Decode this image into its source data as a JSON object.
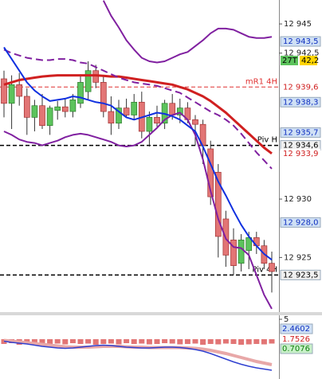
{
  "chart_data": {
    "type": "candlestick",
    "categories": [
      null,
      null,
      null,
      null,
      null,
      null,
      null,
      null,
      null,
      null,
      null,
      null,
      null,
      null,
      null,
      null,
      null,
      null,
      null,
      null,
      null,
      null,
      null,
      null,
      null,
      null,
      null,
      null,
      null,
      null,
      null,
      null,
      null,
      null,
      null,
      null
    ],
    "open": [
      12940.3,
      12938.2,
      12939.8,
      12938.8,
      12937.0,
      12938.0,
      12936.3,
      12937.6,
      12937.9,
      12937.5,
      12938.2,
      12939.2,
      12941.0,
      12940.0,
      12937.5,
      12936.5,
      12937.8,
      12937.2,
      12938.3,
      12935.8,
      12937.0,
      12936.5,
      12938.2,
      12937.2,
      12937.8,
      12936.8,
      12936.4,
      12934.3,
      12932.3,
      12928.3,
      12926.5,
      12924.5,
      12925.6,
      12926.7,
      12926.0,
      12924.5
    ],
    "high": [
      12941.0,
      12940.6,
      12940.8,
      12939.5,
      12938.5,
      12939.0,
      12938.0,
      12938.4,
      12938.6,
      12939.0,
      12940.5,
      12941.8,
      12941.5,
      12940.5,
      12938.8,
      12938.5,
      12938.6,
      12939.0,
      12939.2,
      12937.5,
      12938.0,
      12938.5,
      12939.0,
      12938.6,
      12938.3,
      12937.2,
      12936.8,
      12935.0,
      12933.0,
      12929.0,
      12927.5,
      12927.0,
      12927.2,
      12927.2,
      12926.5,
      12925.5
    ],
    "low": [
      12937.0,
      12936.0,
      12938.0,
      12935.5,
      12935.8,
      12936.0,
      12935.5,
      12936.8,
      12937.0,
      12937.0,
      12937.8,
      12938.5,
      12939.5,
      12937.0,
      12935.5,
      12936.0,
      12937.0,
      12936.8,
      12935.2,
      12934.5,
      12936.2,
      12936.0,
      12936.8,
      12936.5,
      12936.5,
      12934.6,
      12933.0,
      12929.5,
      12925.0,
      12924.2,
      12923.5,
      12923.8,
      12924.0,
      12925.3,
      12924.0,
      12922.0
    ],
    "close": [
      12938.2,
      12939.8,
      12938.8,
      12937.0,
      12938.0,
      12936.3,
      12937.8,
      12937.9,
      12937.5,
      12938.5,
      12940.0,
      12941.0,
      12940.0,
      12937.5,
      12936.5,
      12937.8,
      12937.2,
      12938.3,
      12935.8,
      12937.0,
      12936.5,
      12938.2,
      12937.2,
      12937.8,
      12936.8,
      12936.4,
      12934.6,
      12930.2,
      12926.8,
      12925.2,
      12924.3,
      12926.5,
      12926.7,
      12926.0,
      12924.5,
      12923.8
    ],
    "up_color": "#5cc35c",
    "down_color": "#e27575",
    "lines": [
      {
        "color": "#d02020",
        "width": 3,
        "dash": false,
        "values": [
          12939.8,
          12940.0,
          12940.2,
          12940.3,
          12940.4,
          12940.5,
          12940.55,
          12940.6,
          12940.6,
          12940.6,
          12940.6,
          12940.6,
          12940.6,
          12940.55,
          12940.5,
          12940.5,
          12940.4,
          12940.3,
          12940.2,
          12940.1,
          12940.0,
          12939.9,
          12939.8,
          12939.6,
          12939.4,
          12939.1,
          12938.8,
          12938.4,
          12937.9,
          12937.4,
          12936.8,
          12936.2,
          12935.6,
          12935.0,
          12934.4,
          12933.9
        ]
      },
      {
        "color": "#8020a0",
        "width": 2,
        "dash": false,
        "values": [
          null,
          null,
          null,
          null,
          null,
          null,
          null,
          null,
          null,
          null,
          null,
          null,
          null,
          12947.0,
          12945.7,
          12944.7,
          12943.6,
          12942.8,
          12942.1,
          12941.8,
          12941.7,
          12941.8,
          12942.1,
          12942.4,
          12942.6,
          12943.1,
          12943.6,
          12944.2,
          12944.6,
          12944.6,
          12944.5,
          12944.2,
          12943.9,
          12943.8,
          12943.8,
          12943.9
        ]
      },
      {
        "color": "#8020a0",
        "width": 2,
        "dash": true,
        "values": [
          12942.8,
          12942.5,
          12942.3,
          12942.1,
          12942.0,
          12941.9,
          12941.9,
          12942.0,
          12942.0,
          12941.9,
          12941.7,
          12941.6,
          12941.3,
          12941.0,
          12940.7,
          12940.4,
          12940.2,
          12940.0,
          12939.9,
          12939.8,
          12939.7,
          12939.5,
          12939.3,
          12939.1,
          12938.7,
          12938.3,
          12937.9,
          12937.5,
          12937.2,
          12936.8,
          12936.3,
          12935.6,
          12934.8,
          12934.0,
          12933.3,
          12932.6
        ]
      },
      {
        "color": "#8020a0",
        "width": 2,
        "dash": false,
        "values": [
          12935.8,
          12935.5,
          12935.1,
          12934.9,
          12934.8,
          12934.6,
          12934.8,
          12935.0,
          12935.3,
          12935.5,
          12935.6,
          12935.5,
          12935.3,
          12935.1,
          12934.9,
          12934.6,
          12934.5,
          12934.6,
          12934.9,
          12935.5,
          12936.1,
          12936.8,
          12937.2,
          12937.4,
          12936.8,
          12935.5,
          12933.4,
          12930.7,
          12928.3,
          12926.6,
          12925.9,
          12925.8,
          12925.2,
          12923.5,
          12921.8,
          12920.6
        ]
      },
      {
        "color": "#1030e0",
        "width": 2,
        "dash": false,
        "values": [
          12943.0,
          12942.0,
          12941.0,
          12940.0,
          12939.3,
          12938.8,
          12938.4,
          12938.5,
          12938.6,
          12938.8,
          12938.7,
          12938.5,
          12938.3,
          12938.2,
          12938.0,
          12937.5,
          12937.0,
          12936.8,
          12937.0,
          12937.2,
          12937.4,
          12937.3,
          12937.1,
          12936.8,
          12936.3,
          12935.8,
          12934.5,
          12933.0,
          12931.5,
          12930.3,
          12929.0,
          12927.8,
          12926.8,
          12926.0,
          12925.3,
          12924.8
        ]
      }
    ],
    "levels": [
      {
        "value": 12939.6,
        "label": "mR1 4H",
        "color": "#e03030"
      },
      {
        "value": 12934.6,
        "label": "Piv H",
        "color": "#000000"
      },
      {
        "value": 12923.5,
        "label": "Piv 4H",
        "color": "#000000"
      }
    ],
    "ylim": [
      12920.32,
      12947.05
    ],
    "yticks": [
      {
        "value": 12945,
        "label": "12 945"
      },
      {
        "value": 12942.5,
        "label": "12 942,5"
      },
      {
        "value": 12930,
        "label": "12 930"
      },
      {
        "value": 12925,
        "label": "12 925"
      }
    ],
    "price_tags": [
      {
        "value": 12943.5,
        "label": "12 943,5",
        "color": "#1030c0",
        "bg": "#cfe0f5"
      },
      {
        "value": 12939.6,
        "label": "12 939,6",
        "color": "#d02020",
        "bg": "#ffffff"
      },
      {
        "value": 12938.3,
        "label": "12 938,3",
        "color": "#1030c0",
        "bg": "#cfe0f5"
      },
      {
        "value": 12935.7,
        "label": "12 935,7",
        "color": "#1030c0",
        "bg": "#cfe0f5"
      },
      {
        "value": 12934.6,
        "label": "12 934,6",
        "color": "#000000",
        "bg": "#f0f0f0"
      },
      {
        "value": 12933.9,
        "label": "12 933,9",
        "color": "#d02020",
        "bg": "#ffffff"
      },
      {
        "value": 12928.0,
        "label": "12 928,0",
        "color": "#1030c0",
        "bg": "#cfe0f5"
      },
      {
        "value": 12923.5,
        "label": "12 923,5",
        "color": "#000000",
        "bg": "#f0f0f0"
      }
    ],
    "badges": [
      {
        "text": "27T",
        "bg": "#5cc35c"
      },
      {
        "text": "42,2",
        "bg": "#ffd500"
      }
    ],
    "indicator": {
      "ylim": [
        -10,
        6
      ],
      "yticks": [
        5
      ],
      "bar_color": "#e27575",
      "bars": [
        -1.2,
        -1.0,
        -1.4,
        -1.1,
        -1.3,
        -1.0,
        -1.2,
        -1.1,
        -1.3,
        -1.0,
        -1.2,
        -1.1,
        -1.4,
        -1.2,
        -1.1,
        -1.3,
        -1.0,
        -1.2,
        -1.1,
        -1.3,
        -1.2,
        -1.0,
        -1.1,
        -1.3,
        -1.2,
        -1.1,
        -1.4,
        -1.2,
        -1.3,
        -1.1,
        -1.2,
        -1.4,
        -1.3,
        -1.2,
        -1.3,
        -1.1
      ],
      "lines": [
        {
          "color": "#e8a8a8",
          "width": 4,
          "values": [
            -0.3,
            -0.5,
            -0.7,
            -0.9,
            -1.1,
            -1.3,
            -1.5,
            -1.7,
            -1.9,
            -2,
            -2,
            -2,
            -1.9,
            -1.8,
            -1.8,
            -1.8,
            -1.9,
            -2,
            -2,
            -2.1,
            -2.1,
            -2.1,
            -2.1,
            -2.1,
            -2.2,
            -2.3,
            -2.5,
            -2.8,
            -3.2,
            -3.6,
            -4.1,
            -4.6,
            -5.1,
            -5.6,
            -6,
            -6.4
          ]
        },
        {
          "color": "#3040d0",
          "width": 1.5,
          "values": [
            -0.5,
            -0.8,
            -1,
            -1.2,
            -1.5,
            -1.8,
            -2,
            -2.2,
            -2.3,
            -2.2,
            -2,
            -1.8,
            -1.6,
            -1.5,
            -1.6,
            -1.8,
            -2,
            -2.1,
            -2.2,
            -2.2,
            -2.1,
            -2,
            -2,
            -2.1,
            -2.3,
            -2.6,
            -3,
            -3.6,
            -4.3,
            -5,
            -5.7,
            -6.3,
            -6.8,
            -7.2,
            -7.5,
            -7.8
          ]
        }
      ],
      "tags": [
        {
          "value": 2.4602,
          "color": "#1030c0",
          "bg": "#cfe0f5"
        },
        {
          "value": 1.7526,
          "color": "#d02020",
          "bg": "#ffffff"
        },
        {
          "value": 0.7076,
          "color": "#108010",
          "bg": "#c8f0c8"
        }
      ]
    }
  }
}
